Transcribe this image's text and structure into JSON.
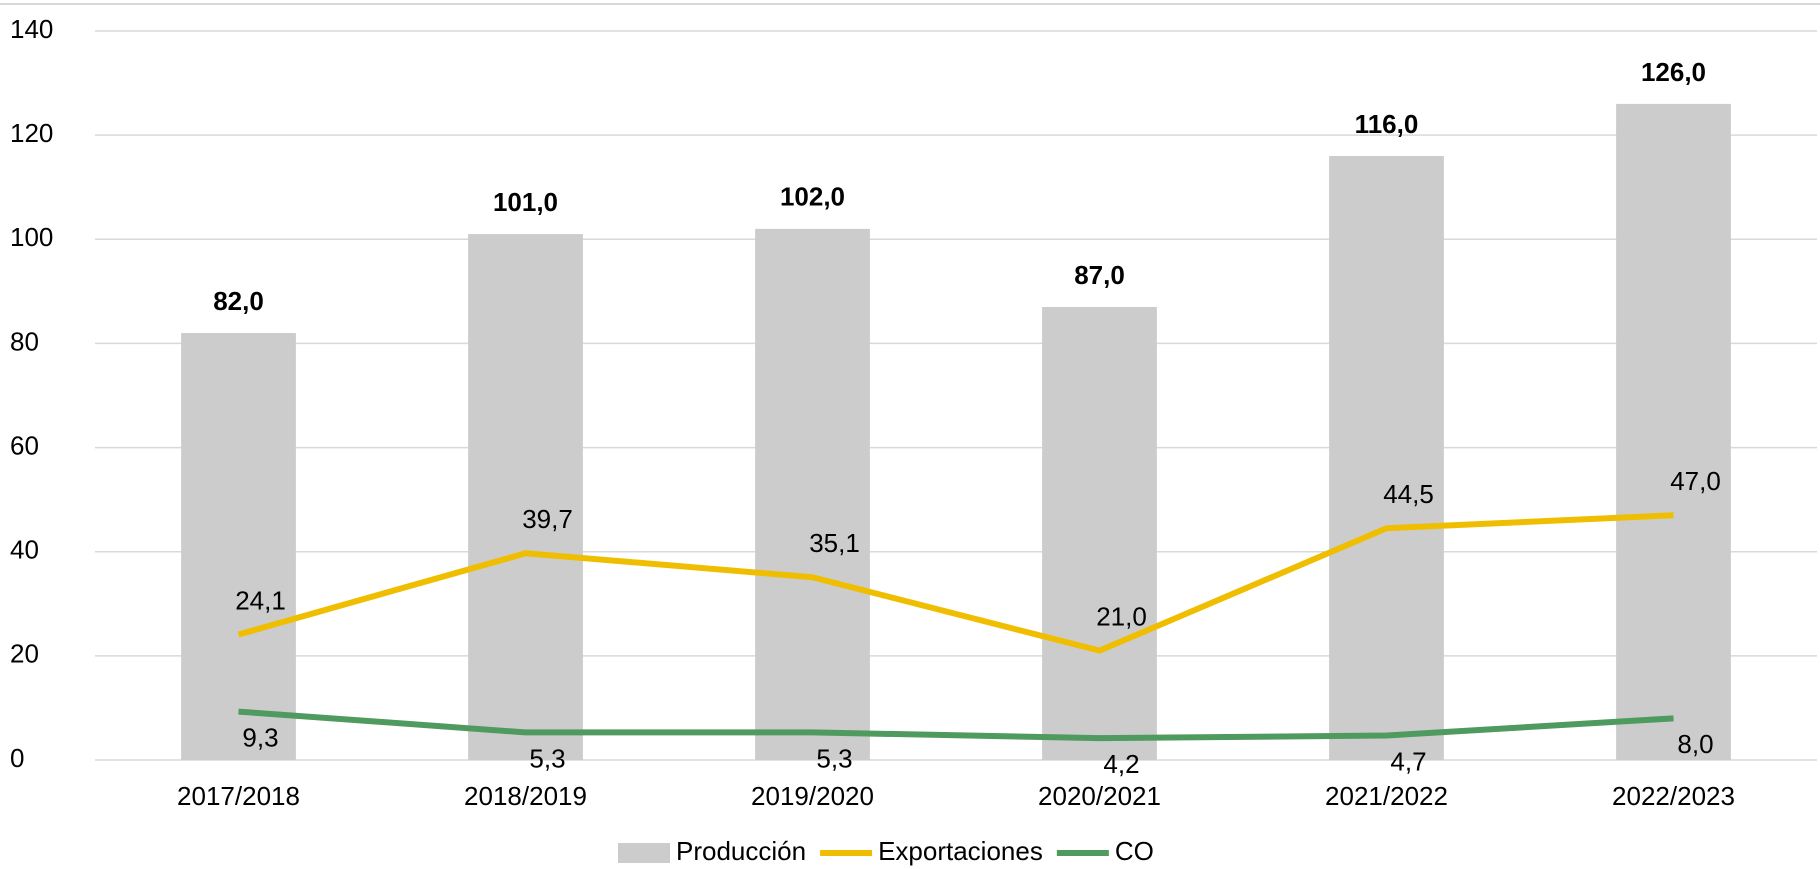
{
  "chart_data": {
    "type": "bar_line",
    "categories": [
      "2017/2018",
      "2018/2019",
      "2019/2020",
      "2020/2021",
      "2021/2022",
      "2022/2023"
    ],
    "series": [
      {
        "name": "Producción",
        "type": "bar",
        "color": "#cccccc",
        "values": [
          82.0,
          101.0,
          102.0,
          87.0,
          116.0,
          126.0
        ],
        "value_labels": [
          "82,0",
          "101,0",
          "102,0",
          "87,0",
          "116,0",
          "126,0"
        ]
      },
      {
        "name": "Exportaciones",
        "type": "line",
        "color": "#f0be00",
        "values": [
          24.1,
          39.7,
          35.1,
          21.0,
          44.5,
          47.0
        ],
        "value_labels": [
          "24,1",
          "39,7",
          "35,1",
          "21,0",
          "44,5",
          "47,0"
        ]
      },
      {
        "name": "CO",
        "type": "line",
        "color": "#4f9a5f",
        "values": [
          9.3,
          5.3,
          5.3,
          4.2,
          4.7,
          8.0
        ],
        "value_labels": [
          "9,3",
          "5,3",
          "5,3",
          "4,2",
          "4,7",
          "8,0"
        ]
      }
    ],
    "ylim": [
      0,
      140
    ],
    "yticks": [
      0,
      20,
      40,
      60,
      80,
      100,
      120,
      140
    ],
    "grid": true,
    "legend": "bottom"
  }
}
